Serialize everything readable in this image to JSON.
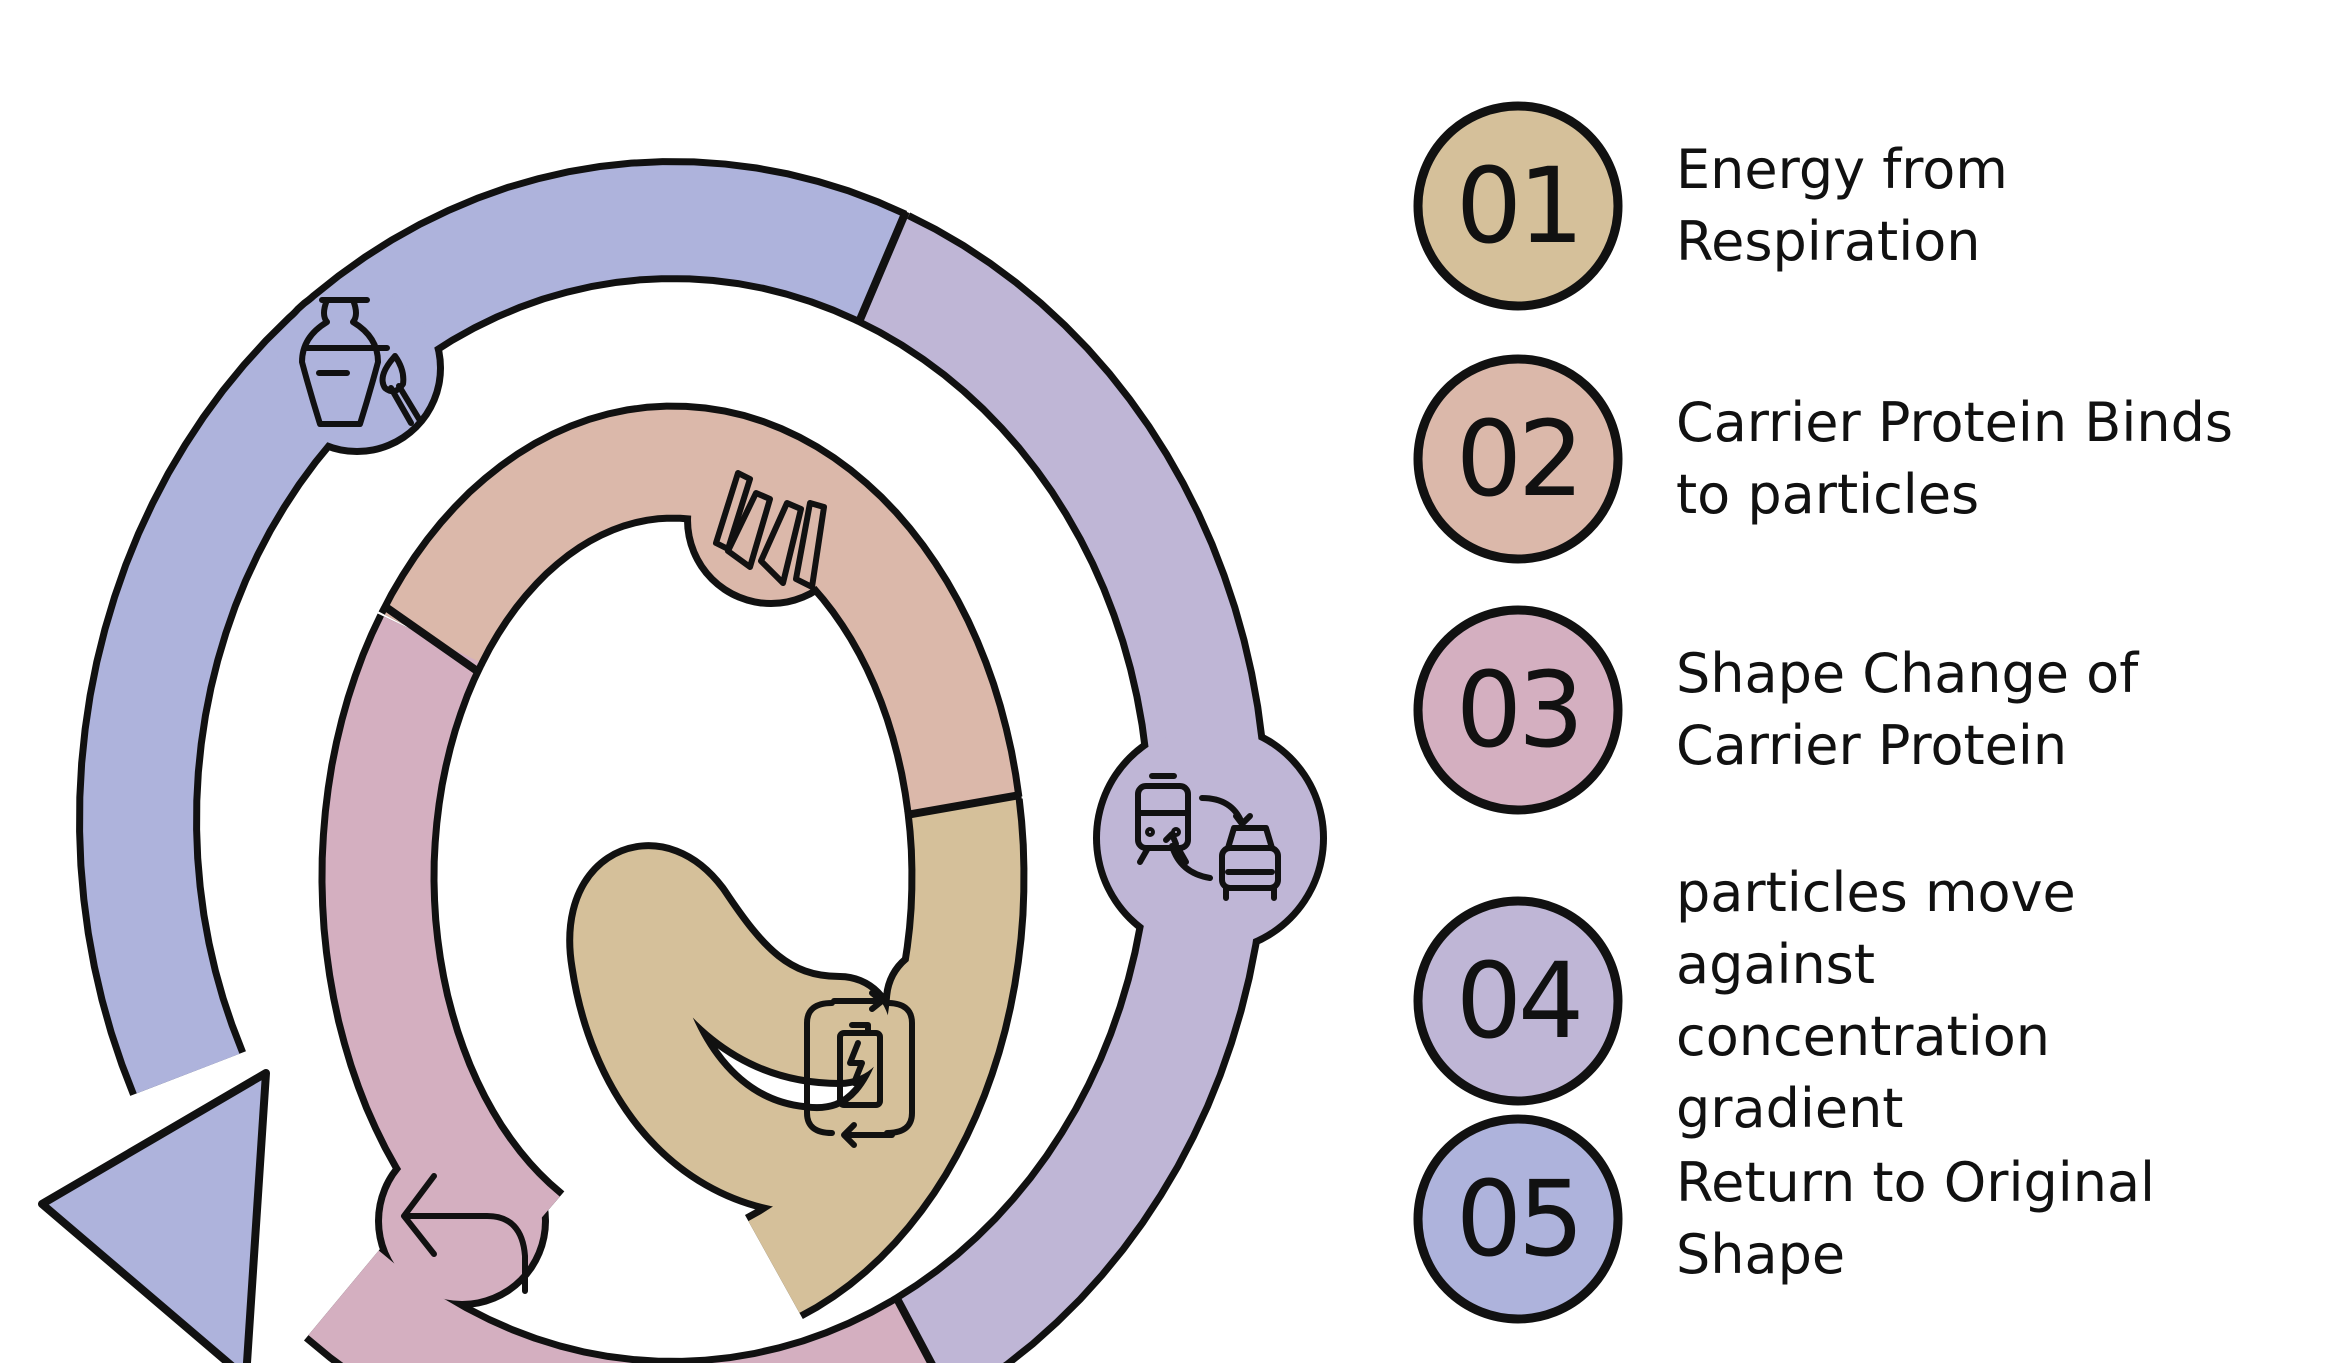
{
  "colors": {
    "outline": "#111111",
    "tan": "#d5c09a",
    "salmon": "#dbb8aa",
    "pink": "#d4afc0",
    "purple": "#bfb6d6",
    "blue": "#aeb3dc"
  },
  "icons": [
    "vase-paintbrush-icon",
    "train-car-exchange-icon",
    "spring-coil-icon",
    "battery-cycle-icon",
    "return-arrow-icon"
  ],
  "steps": [
    {
      "number": "01",
      "lines": [
        "Energy from",
        "Respiration"
      ],
      "color": "#d5c09a"
    },
    {
      "number": "02",
      "lines": [
        "Carrier Protein Binds",
        "to particles"
      ],
      "color": "#dbb8aa"
    },
    {
      "number": "03",
      "lines": [
        "Shape Change of",
        "Carrier Protein"
      ],
      "color": "#d4afc0"
    },
    {
      "number": "04",
      "lines": [
        "particles move",
        "against",
        "concentration",
        "gradient"
      ],
      "color": "#bfb6d6"
    },
    {
      "number": "05",
      "lines": [
        "Return to Original",
        "Shape"
      ],
      "color": "#aeb3dc"
    }
  ]
}
